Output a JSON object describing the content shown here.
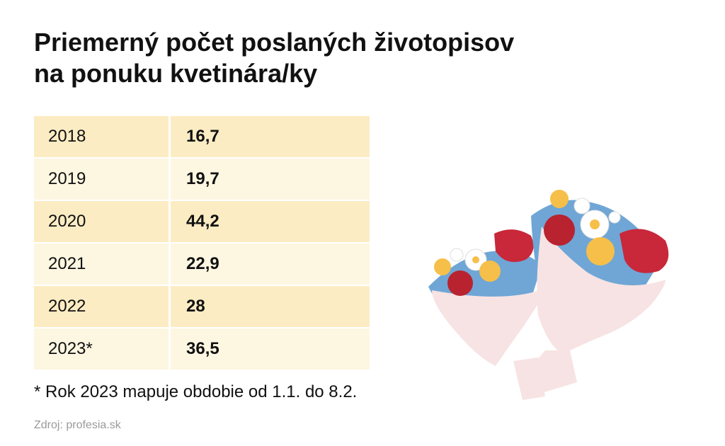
{
  "title": {
    "line1": "Priemerný počet poslaných životopisov",
    "line2": "na ponuku kvetinára/ky"
  },
  "chart_data": {
    "type": "table",
    "columns": [
      "year",
      "value"
    ],
    "rows": [
      {
        "year": "2018",
        "value": "16,7"
      },
      {
        "year": "2019",
        "value": "19,7"
      },
      {
        "year": "2020",
        "value": "44,2"
      },
      {
        "year": "2021",
        "value": "22,9"
      },
      {
        "year": "2022",
        "value": "28"
      },
      {
        "year": "2023*",
        "value": "36,5"
      }
    ],
    "values_numeric": [
      16.7,
      19.7,
      44.2,
      22.9,
      28,
      36.5
    ]
  },
  "footnote": "* Rok 2023 mapuje obdobie od 1.1. do 8.2.",
  "source": "Zdroj: profesia.sk",
  "colors": {
    "row_dark": "#fcecc3",
    "row_light": "#fdf6e1",
    "rose": "#c8283a",
    "yellow_flower": "#f6bf49",
    "leaves": "#6fa6d6",
    "wrap": "#f7e3e3"
  },
  "illustration": "flower-bouquets-icon"
}
